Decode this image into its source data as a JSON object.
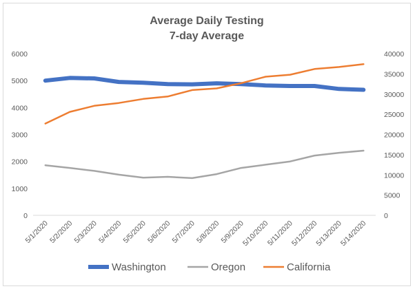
{
  "chart_data": {
    "type": "line",
    "title": "Average Daily Testing",
    "subtitle": "7-day Average",
    "categories": [
      "5/1/2020",
      "5/2/2020",
      "5/3/2020",
      "5/4/2020",
      "5/5/2020",
      "5/6/2020",
      "5/7/2020",
      "5/8/2020",
      "5/9/2020",
      "5/10/2020",
      "5/11/2020",
      "5/12/2020",
      "5/13/2020",
      "5/14/2020"
    ],
    "y_left": {
      "min": 0,
      "max": 6000,
      "ticks": [
        "0",
        "1000",
        "2000",
        "3000",
        "4000",
        "5000",
        "6000"
      ]
    },
    "y_right": {
      "min": 0,
      "max": 40000,
      "ticks": [
        "0",
        "5000",
        "10000",
        "15000",
        "20000",
        "25000",
        "30000",
        "35000",
        "40000"
      ]
    },
    "grid": false,
    "legend_position": "bottom",
    "series": [
      {
        "name": "Washington",
        "axis": "left",
        "color": "#4472C4",
        "values": [
          5000,
          5100,
          5080,
          4950,
          4920,
          4870,
          4860,
          4900,
          4870,
          4820,
          4800,
          4800,
          4690,
          4660
        ]
      },
      {
        "name": "Oregon",
        "axis": "left",
        "color": "#A5A5A5",
        "values": [
          1860,
          1760,
          1650,
          1510,
          1400,
          1430,
          1380,
          1530,
          1760,
          1880,
          2000,
          2220,
          2320,
          2400
        ]
      },
      {
        "name": "California",
        "axis": "right",
        "color": "#ED7D31",
        "values": [
          22700,
          25600,
          27100,
          27800,
          28800,
          29400,
          31000,
          31400,
          32700,
          34300,
          34800,
          36200,
          36700,
          37400
        ]
      }
    ]
  }
}
